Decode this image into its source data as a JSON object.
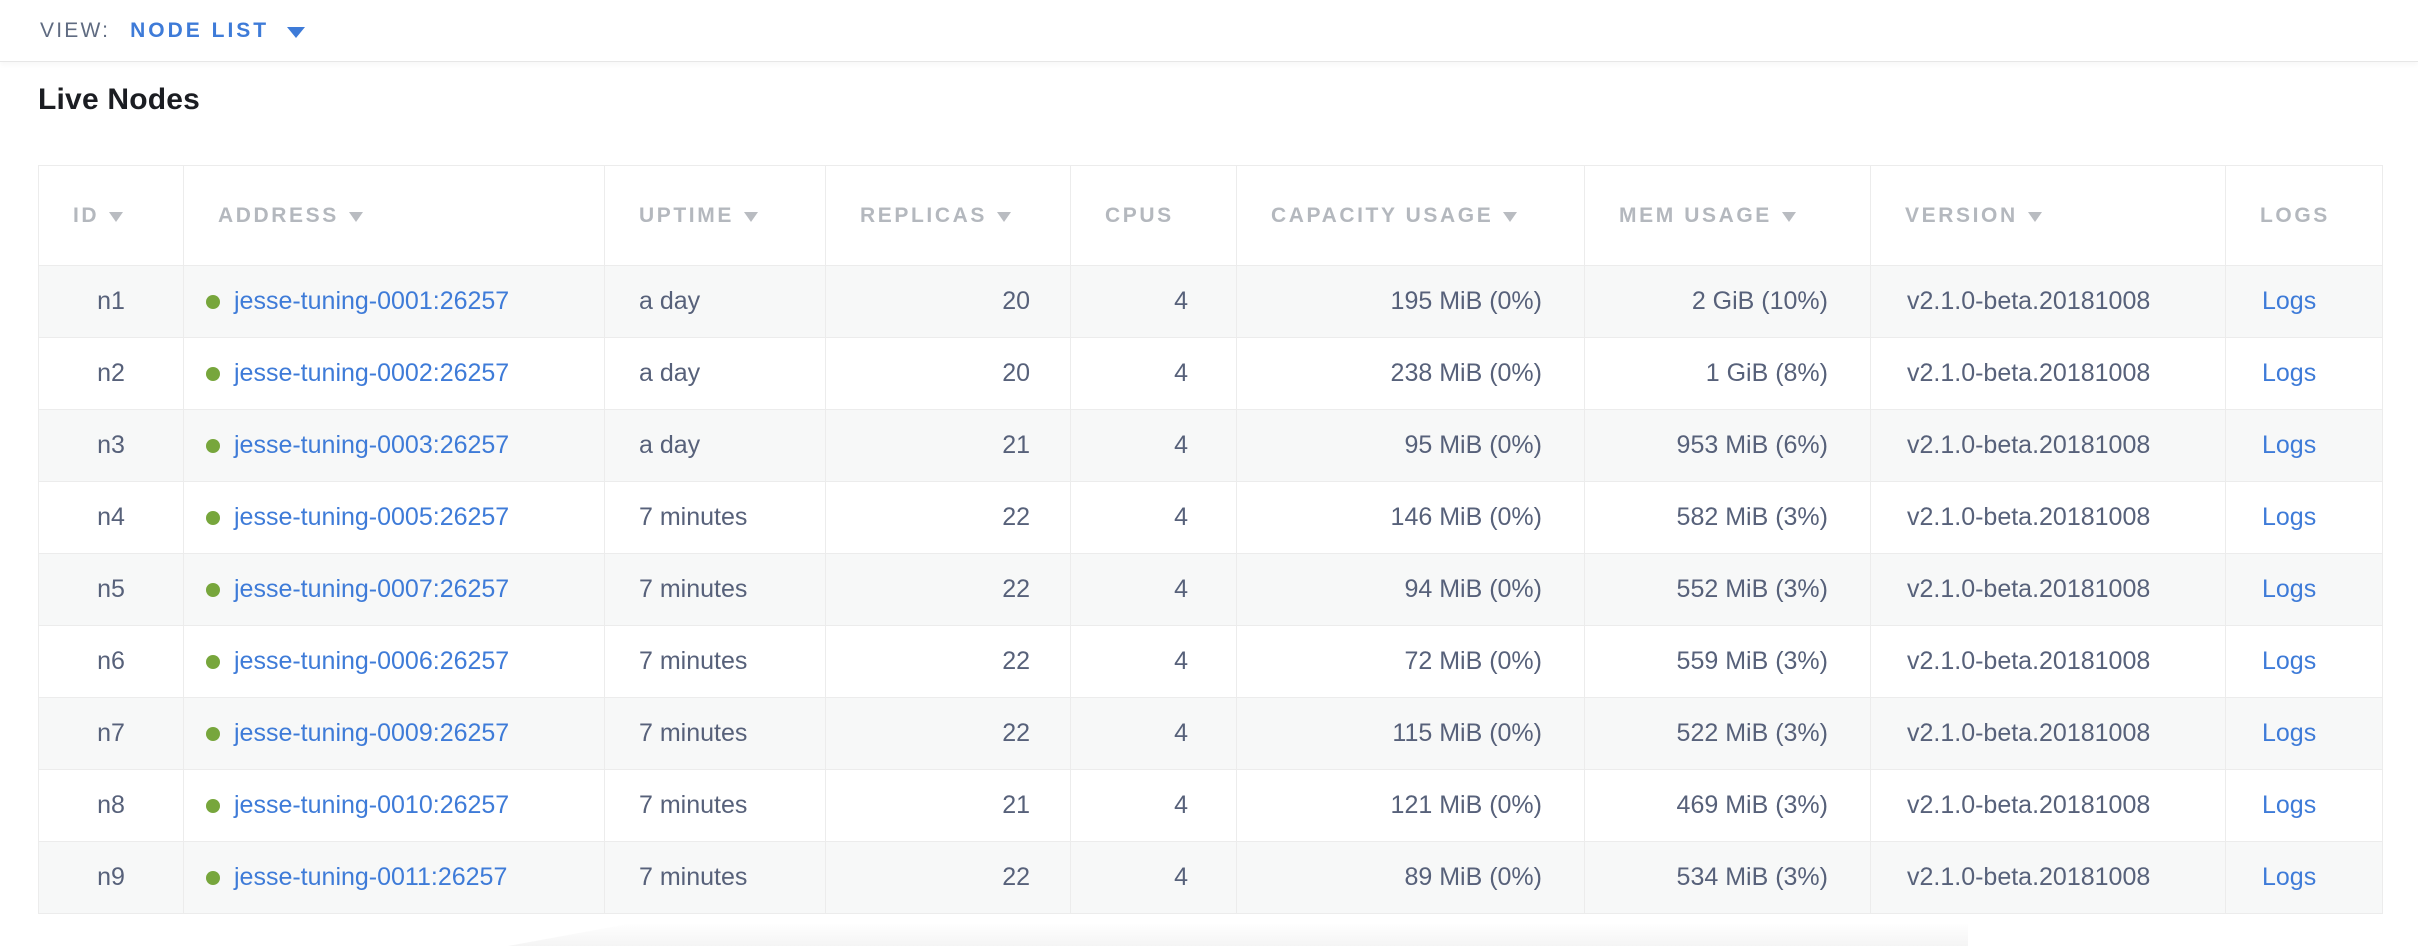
{
  "view_bar": {
    "label": "VIEW:",
    "selected_view": "NODE LIST"
  },
  "page": {
    "title": "Live Nodes"
  },
  "table": {
    "columns": [
      {
        "key": "id",
        "label": "ID",
        "sortable": true
      },
      {
        "key": "address",
        "label": "ADDRESS",
        "sortable": true
      },
      {
        "key": "uptime",
        "label": "UPTIME",
        "sortable": true
      },
      {
        "key": "replicas",
        "label": "REPLICAS",
        "sortable": true
      },
      {
        "key": "cpus",
        "label": "CPUS",
        "sortable": false
      },
      {
        "key": "capacity",
        "label": "CAPACITY USAGE",
        "sortable": true
      },
      {
        "key": "mem",
        "label": "MEM USAGE",
        "sortable": true
      },
      {
        "key": "version",
        "label": "VERSION",
        "sortable": true
      },
      {
        "key": "logs",
        "label": "LOGS",
        "sortable": false
      }
    ],
    "rows": [
      {
        "id": "n1",
        "address": "jesse-tuning-0001:26257",
        "uptime": "a day",
        "replicas": "20",
        "cpus": "4",
        "capacity": "195 MiB (0%)",
        "mem": "2 GiB (10%)",
        "version": "v2.1.0-beta.20181008",
        "logs": "Logs",
        "status": "live"
      },
      {
        "id": "n2",
        "address": "jesse-tuning-0002:26257",
        "uptime": "a day",
        "replicas": "20",
        "cpus": "4",
        "capacity": "238 MiB (0%)",
        "mem": "1 GiB (8%)",
        "version": "v2.1.0-beta.20181008",
        "logs": "Logs",
        "status": "live"
      },
      {
        "id": "n3",
        "address": "jesse-tuning-0003:26257",
        "uptime": "a day",
        "replicas": "21",
        "cpus": "4",
        "capacity": "95 MiB (0%)",
        "mem": "953 MiB (6%)",
        "version": "v2.1.0-beta.20181008",
        "logs": "Logs",
        "status": "live"
      },
      {
        "id": "n4",
        "address": "jesse-tuning-0005:26257",
        "uptime": "7 minutes",
        "replicas": "22",
        "cpus": "4",
        "capacity": "146 MiB (0%)",
        "mem": "582 MiB (3%)",
        "version": "v2.1.0-beta.20181008",
        "logs": "Logs",
        "status": "live"
      },
      {
        "id": "n5",
        "address": "jesse-tuning-0007:26257",
        "uptime": "7 minutes",
        "replicas": "22",
        "cpus": "4",
        "capacity": "94 MiB (0%)",
        "mem": "552 MiB (3%)",
        "version": "v2.1.0-beta.20181008",
        "logs": "Logs",
        "status": "live"
      },
      {
        "id": "n6",
        "address": "jesse-tuning-0006:26257",
        "uptime": "7 minutes",
        "replicas": "22",
        "cpus": "4",
        "capacity": "72 MiB (0%)",
        "mem": "559 MiB (3%)",
        "version": "v2.1.0-beta.20181008",
        "logs": "Logs",
        "status": "live"
      },
      {
        "id": "n7",
        "address": "jesse-tuning-0009:26257",
        "uptime": "7 minutes",
        "replicas": "22",
        "cpus": "4",
        "capacity": "115 MiB (0%)",
        "mem": "522 MiB (3%)",
        "version": "v2.1.0-beta.20181008",
        "logs": "Logs",
        "status": "live"
      },
      {
        "id": "n8",
        "address": "jesse-tuning-0010:26257",
        "uptime": "7 minutes",
        "replicas": "21",
        "cpus": "4",
        "capacity": "121 MiB (0%)",
        "mem": "469 MiB (3%)",
        "version": "v2.1.0-beta.20181008",
        "logs": "Logs",
        "status": "live"
      },
      {
        "id": "n9",
        "address": "jesse-tuning-0011:26257",
        "uptime": "7 minutes",
        "replicas": "22",
        "cpus": "4",
        "capacity": "89 MiB (0%)",
        "mem": "534 MiB (3%)",
        "version": "v2.1.0-beta.20181008",
        "logs": "Logs",
        "status": "live"
      }
    ]
  },
  "colors": {
    "link_blue": "#3e7bd8",
    "status_green": "#77a63c",
    "header_text": "#b4b8be",
    "cell_text": "#57617a",
    "zebra_row": "#f7f8f8",
    "table_border": "#ececec",
    "view_label_text": "#5f6b81",
    "title_text": "#1b1d22"
  }
}
